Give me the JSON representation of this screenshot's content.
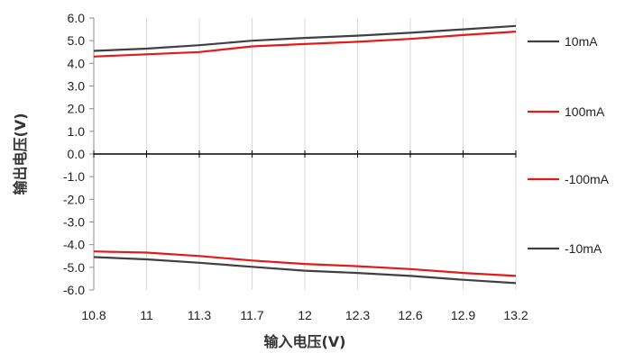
{
  "chart_data": {
    "type": "line",
    "xlabel": "输入电压(V)",
    "ylabel": "输出电压(V)",
    "x_categories": [
      "10.8",
      "11",
      "11.3",
      "11.7",
      "12",
      "12.3",
      "12.6",
      "12.9",
      "13.2"
    ],
    "y_ticks": [
      "6.0",
      "5.0",
      "4.0",
      "3.0",
      "2.0",
      "1.0",
      "0.0",
      "-1.0",
      "-2.0",
      "-3.0",
      "-4.0",
      "-5.0",
      "-6.0"
    ],
    "ylim": [
      -6.0,
      6.0
    ],
    "grid": "vertical",
    "legend_position": "right",
    "series": [
      {
        "name": "10mA",
        "color": "#404040",
        "values": [
          4.55,
          4.65,
          4.8,
          5.0,
          5.12,
          5.22,
          5.35,
          5.5,
          5.65
        ]
      },
      {
        "name": "100mA",
        "color": "#e31a1c",
        "values": [
          4.3,
          4.4,
          4.5,
          4.75,
          4.85,
          4.95,
          5.08,
          5.25,
          5.4
        ]
      },
      {
        "name": "-100mA",
        "color": "#e31a1c",
        "values": [
          -4.3,
          -4.35,
          -4.5,
          -4.7,
          -4.85,
          -4.95,
          -5.08,
          -5.25,
          -5.38
        ]
      },
      {
        "name": "-10mA",
        "color": "#404040",
        "values": [
          -4.55,
          -4.65,
          -4.8,
          -4.98,
          -5.15,
          -5.25,
          -5.38,
          -5.55,
          -5.7
        ]
      }
    ]
  }
}
